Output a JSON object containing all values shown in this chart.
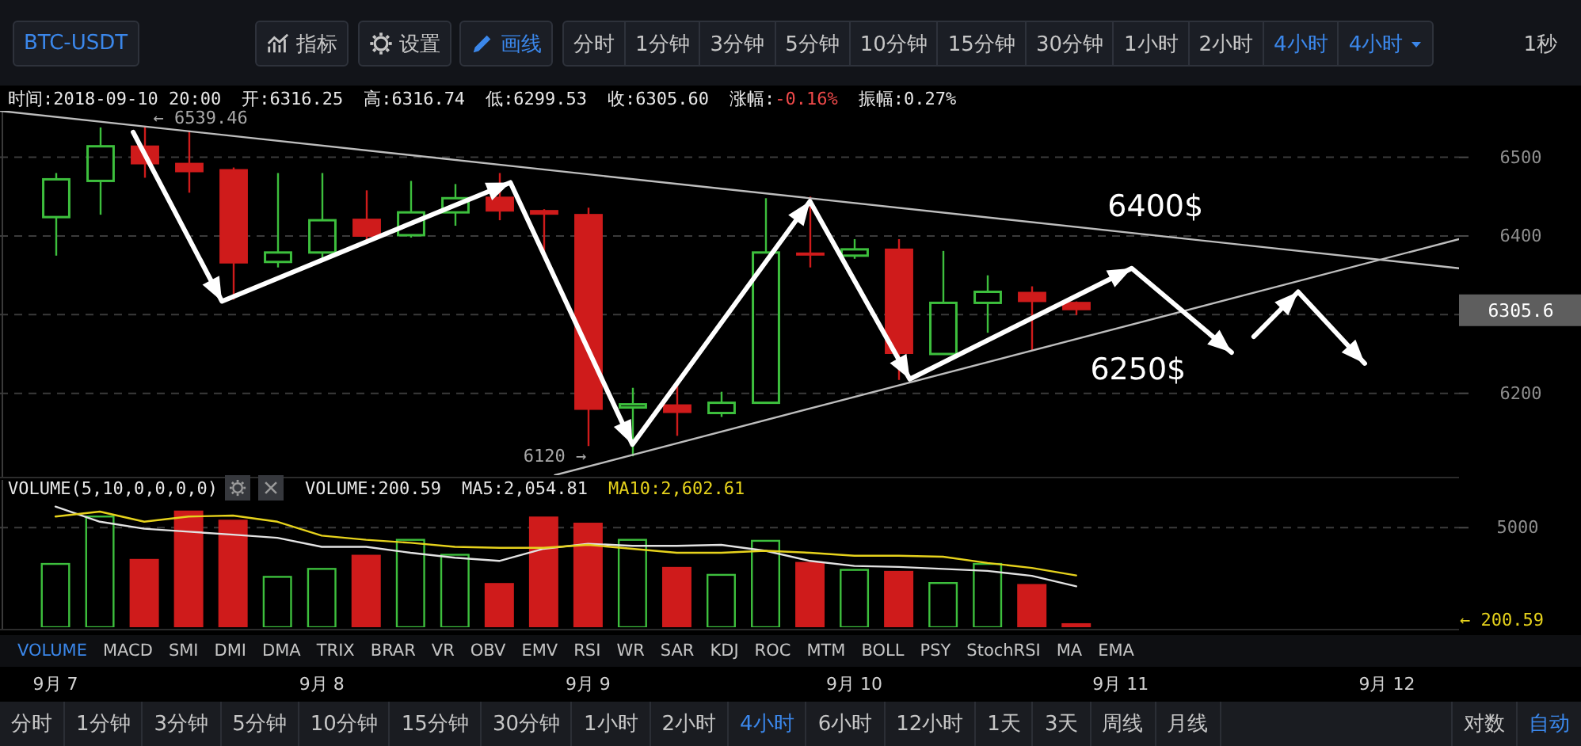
{
  "chart_data": [
    {
      "type": "other",
      "annotations": [
        "BTC-USDT",
        "指标",
        "设置",
        "画线",
        "分时",
        "1分钟",
        "3分钟",
        "5分钟",
        "10分钟",
        "15分钟",
        "30分钟",
        "1小时",
        "2小时",
        "4小时",
        "4小时",
        "1秒"
      ]
    },
    {
      "type": "candlestick",
      "x": [
        "2018-09-07T00:00",
        "2018-09-07T04:00",
        "2018-09-07T08:00",
        "2018-09-07T12:00",
        "2018-09-07T16:00",
        "2018-09-07T20:00",
        "2018-09-08T00:00",
        "2018-09-08T04:00",
        "2018-09-08T08:00",
        "2018-09-08T12:00",
        "2018-09-08T16:00",
        "2018-09-08T20:00",
        "2018-09-09T00:00",
        "2018-09-09T04:00",
        "2018-09-09T08:00",
        "2018-09-09T12:00",
        "2018-09-09T16:00",
        "2018-09-09T20:00",
        "2018-09-10T00:00",
        "2018-09-10T04:00",
        "2018-09-10T08:00",
        "2018-09-10T12:00",
        "2018-09-10T16:00",
        "2018-09-10T20:00"
      ],
      "xlim": [
        "2018-09-06T19:00",
        "2018-09-12T06:30"
      ],
      "ylim": [
        6096,
        6559
      ],
      "yticks": [
        6200,
        {
          "value": 6300,
          "label": null
        },
        6305.6,
        6400,
        6500
      ],
      "grid": "y",
      "tick_labels": "y",
      "series": [
        {
          "type": "candlestick",
          "ohlc": [
            [
              6424,
              6480,
              6375,
              6472
            ],
            [
              6470,
              6538,
              6427,
              6514
            ],
            [
              6515,
              6539.46,
              6474,
              6491
            ],
            [
              6493,
              6534,
              6455,
              6481
            ],
            [
              6485,
              6487,
              6319,
              6365
            ],
            [
              6367,
              6480,
              6360,
              6379
            ],
            [
              6379,
              6480,
              6368,
              6420
            ],
            [
              6422,
              6458,
              6391,
              6399
            ],
            [
              6401,
              6470,
              6398,
              6430
            ],
            [
              6430,
              6466,
              6413,
              6448
            ],
            [
              6450,
              6480,
              6420,
              6431
            ],
            [
              6433,
              6434,
              6377,
              6427
            ],
            [
              6428,
              6436,
              6133,
              6179
            ],
            [
              6182,
              6207,
              6120,
              6186
            ],
            [
              6186,
              6210,
              6146,
              6175
            ],
            [
              6175,
              6202,
              6170,
              6188
            ],
            [
              6188,
              6448,
              6188,
              6379
            ],
            [
              6379,
              6450,
              6360,
              6375
            ],
            [
              6375,
              6396,
              6371,
              6383
            ],
            [
              6384,
              6396,
              6217,
              6250
            ],
            [
              6250,
              6381,
              6250,
              6315
            ],
            [
              6315,
              6350,
              6277,
              6329
            ],
            [
              6329,
              6336,
              6255,
              6316
            ],
            [
              6316.25,
              6316.74,
              6299.53,
              6305.6
            ]
          ],
          "colors": [
            "#3dbf3d",
            "#3dbf3d",
            "#cf1b1b",
            "#cf1b1b",
            "#cf1b1b",
            "#3dbf3d",
            "#3dbf3d",
            "#cf1b1b",
            "#3dbf3d",
            "#3dbf3d",
            "#cf1b1b",
            "#cf1b1b",
            "#cf1b1b",
            "#3dbf3d",
            "#cf1b1b",
            "#3dbf3d",
            "#3dbf3d",
            "#cf1b1b",
            "#3dbf3d",
            "#cf1b1b",
            "#3dbf3d",
            "#3dbf3d",
            "#cf1b1b",
            "#cf1b1b"
          ]
        },
        {
          "type": "line",
          "color": "#bdbdbd",
          "x": [
            "2018-09-06T19:00",
            "2018-09-12T06:30"
          ],
          "values": [
            6559,
            6359
          ]
        },
        {
          "type": "line",
          "color": "#bdbdbd",
          "x": [
            "2018-09-08T21:00",
            "2018-09-12T06:30"
          ],
          "values": [
            6096,
            6396
          ]
        },
        {
          "type": "line",
          "color": "#ffffff",
          "x": [
            "2018-09-07T07:00",
            "2018-09-07T15:00",
            "2018-09-08T17:00",
            "2018-09-09T04:00",
            "2018-09-09T20:00",
            "2018-09-10T05:00",
            "2018-09-11T01:00",
            "2018-09-11T10:00"
          ],
          "values": [
            6532,
            6317,
            6468,
            6135,
            6444,
            6218,
            6359,
            6252
          ]
        },
        {
          "type": "line",
          "color": "#ffffff",
          "x": [
            "2018-09-11T12:00",
            "2018-09-11T16:00",
            "2018-09-11T22:00"
          ],
          "values": [
            6272,
            6329,
            6238
          ]
        }
      ],
      "annotations": [
        "时间:2018-09-10 20:00",
        "开:6316.25",
        "高:6316.74",
        "低:6299.53",
        "收:6305.60",
        "涨幅:-0.16%",
        "振幅:0.27%",
        {
          "text": "← 6539.46",
          "x": "2018-09-07T12:30",
          "y": 6538
        },
        {
          "text": "6120 →",
          "x": "2018-09-09T01:00",
          "y": 6120
        },
        {
          "text": "6400$",
          "x": "2018-09-11T03:00",
          "y": 6401
        },
        {
          "text": "6250$",
          "x": "2018-09-11T10:00",
          "y": 6252
        }
      ]
    },
    {
      "type": "bar",
      "title": "VOLUME(5,10,0,0,0,0)",
      "x": [
        "2018-09-07T00:00",
        "2018-09-07T04:00",
        "2018-09-07T08:00",
        "2018-09-07T12:00",
        "2018-09-07T16:00",
        "2018-09-07T20:00",
        "2018-09-08T00:00",
        "2018-09-08T04:00",
        "2018-09-08T08:00",
        "2018-09-08T12:00",
        "2018-09-08T16:00",
        "2018-09-08T20:00",
        "2018-09-09T00:00",
        "2018-09-09T04:00",
        "2018-09-09T08:00",
        "2018-09-09T12:00",
        "2018-09-09T16:00",
        "2018-09-09T20:00",
        "2018-09-10T00:00",
        "2018-09-10T04:00",
        "2018-09-10T08:00",
        "2018-09-10T12:00",
        "2018-09-10T16:00",
        "2018-09-10T20:00"
      ],
      "xlim": [
        "2018-09-06T19:00",
        "2018-09-12T06:30"
      ],
      "xticks": [
        {
          "value": "2018-09-07",
          "label": "9月 7"
        },
        {
          "value": "2018-09-08",
          "label": "9月 8"
        },
        {
          "value": "2018-09-09",
          "label": "9月 9"
        },
        {
          "value": "2018-09-10",
          "label": "9月 10"
        },
        {
          "value": "2018-09-11",
          "label": "9月 11"
        },
        {
          "value": "2018-09-12",
          "label": "9月 12"
        }
      ],
      "ylim": [
        0,
        7400
      ],
      "yticks": [
        {
          "value": 200.59,
          "label": "← 200.59"
        },
        5000
      ],
      "grid": "y",
      "legend": "top left",
      "annotations": [
        "VOLUME:200.59"
      ],
      "series": [
        {
          "type": "bar",
          "values": [
            3180,
            5560,
            3430,
            5860,
            5400,
            2530,
            2930,
            3640,
            4390,
            3640,
            2220,
            5560,
            5250,
            4390,
            3030,
            2630,
            4340,
            3280,
            2880,
            2830,
            2220,
            3180,
            2170,
            200.59
          ],
          "colors": [
            "#3dbf3d",
            "#3dbf3d",
            "#cf1b1b",
            "#cf1b1b",
            "#cf1b1b",
            "#3dbf3d",
            "#3dbf3d",
            "#cf1b1b",
            "#3dbf3d",
            "#3dbf3d",
            "#cf1b1b",
            "#cf1b1b",
            "#cf1b1b",
            "#3dbf3d",
            "#cf1b1b",
            "#3dbf3d",
            "#3dbf3d",
            "#cf1b1b",
            "#3dbf3d",
            "#cf1b1b",
            "#3dbf3d",
            "#3dbf3d",
            "#cf1b1b",
            "#cf1b1b"
          ]
        },
        {
          "type": "line",
          "name": "MA5:2,054.81",
          "color": "#e2e2e2",
          "values": [
            6060,
            5300,
            4950,
            4800,
            4650,
            4490,
            4040,
            4040,
            3740,
            3490,
            3330,
            3940,
            4190,
            4090,
            4090,
            4140,
            3840,
            3330,
            3080,
            3030,
            2930,
            2830,
            2580,
            2054.81
          ]
        },
        {
          "type": "line",
          "name": "MA10:2,602.61",
          "color": "#e6d21c",
          "values": [
            5560,
            5810,
            5300,
            5560,
            5610,
            5300,
            4600,
            4390,
            4240,
            4040,
            3990,
            3990,
            4140,
            3940,
            3740,
            3740,
            3840,
            3740,
            3590,
            3590,
            3540,
            3230,
            2980,
            2602.61
          ]
        }
      ]
    },
    {
      "type": "other",
      "annotations": [
        "VOLUME",
        "MACD",
        "SMI",
        "DMI",
        "DMA",
        "TRIX",
        "BRAR",
        "VR",
        "OBV",
        "EMV",
        "RSI",
        "WR",
        "SAR",
        "KDJ",
        "ROC",
        "MTM",
        "BOLL",
        "PSY",
        "StochRSI",
        "MA",
        "EMA"
      ]
    },
    {
      "type": "other",
      "annotations": [
        "分时",
        "1分钟",
        "3分钟",
        "5分钟",
        "10分钟",
        "15分钟",
        "30分钟",
        "1小时",
        "2小时",
        "4小时",
        "6小时",
        "12小时",
        "1天",
        "3天",
        "周线",
        "月线",
        "对数",
        "自动"
      ]
    }
  ]
}
